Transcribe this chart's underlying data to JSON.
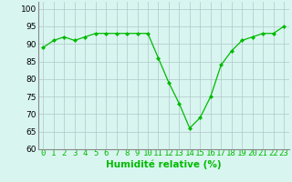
{
  "x": [
    0,
    1,
    2,
    3,
    4,
    5,
    6,
    7,
    8,
    9,
    10,
    11,
    12,
    13,
    14,
    15,
    16,
    17,
    18,
    19,
    20,
    21,
    22,
    23
  ],
  "y": [
    89,
    91,
    92,
    91,
    92,
    93,
    93,
    93,
    93,
    93,
    93,
    86,
    79,
    73,
    66,
    69,
    75,
    84,
    88,
    91,
    92,
    93,
    93,
    95
  ],
  "line_color": "#00bb00",
  "marker": "D",
  "marker_size": 2.0,
  "bg_color": "#d8f5f0",
  "grid_color": "#b0c8c8",
  "xlabel": "Humidité relative (%)",
  "ylim": [
    60,
    102
  ],
  "yticks": [
    60,
    65,
    70,
    75,
    80,
    85,
    90,
    95,
    100
  ],
  "ytick_labels": [
    "60",
    "65",
    "70",
    "75",
    "80",
    "85",
    "90",
    "95",
    "100"
  ],
  "xtick_labels": [
    "0",
    "1",
    "2",
    "3",
    "4",
    "5",
    "6",
    "7",
    "8",
    "9",
    "10",
    "11",
    "12",
    "13",
    "14",
    "15",
    "16",
    "17",
    "18",
    "19",
    "20",
    "21",
    "22",
    "23"
  ],
  "xlabel_color": "#00bb00",
  "xlabel_fontsize": 7.5,
  "tick_fontsize": 6.5,
  "ytick_fontsize": 6.5
}
